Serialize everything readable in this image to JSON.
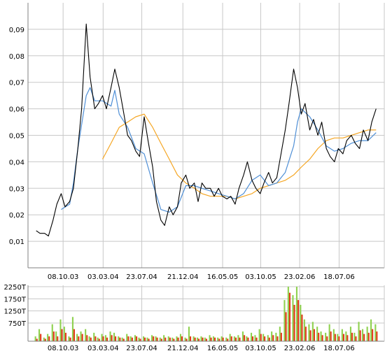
{
  "colors": {
    "price": "#000000",
    "ma_short": "#4f8fd6",
    "ma_long": "#f5a623",
    "volume_up": "#8fd14f",
    "volume_down": "#e23b1b",
    "grid": "#c8c8c8",
    "axis": "#808080"
  },
  "chart_data": [
    {
      "type": "line",
      "title": "",
      "xlabel": "",
      "ylabel": "",
      "grid": true,
      "legend": "none",
      "x_ticks": [
        "08.10.03",
        "03.03.04",
        "23.07.04",
        "21.12.04",
        "16.05.05",
        "03.10.05",
        "23.02.06",
        "18.07.06"
      ],
      "y_ticks": [
        "0,01",
        "0,02",
        "0,03",
        "0,04",
        "0,05",
        "0,06",
        "0,07",
        "0,08",
        "0,09"
      ],
      "ylim": [
        0,
        0.1
      ],
      "series": [
        {
          "key": "price",
          "x": [
            "01.07.03",
            "15.07.03",
            "01.08.03",
            "15.08.03",
            "01.09.03",
            "15.09.03",
            "01.10.03",
            "15.10.03",
            "01.11.03",
            "15.11.03",
            "01.12.03",
            "15.12.03",
            "01.01.04",
            "15.01.04",
            "01.02.04",
            "15.02.04",
            "01.03.04",
            "15.03.04",
            "01.04.04",
            "15.04.04",
            "01.05.04",
            "15.05.04",
            "01.06.04",
            "15.06.04",
            "01.07.04",
            "15.07.04",
            "01.08.04",
            "15.08.04",
            "01.09.04",
            "15.09.04",
            "01.10.04",
            "15.10.04",
            "01.11.04",
            "15.11.04",
            "01.12.04",
            "15.12.04",
            "01.01.05",
            "15.01.05",
            "01.02.05",
            "15.02.05",
            "01.03.05",
            "15.03.05",
            "01.04.05",
            "15.04.05",
            "01.05.05",
            "15.05.05",
            "01.06.05",
            "15.06.05",
            "01.07.05",
            "15.07.05",
            "01.08.05",
            "15.08.05",
            "01.09.05",
            "15.09.05",
            "01.10.05",
            "15.10.05",
            "01.11.05",
            "15.11.05",
            "01.12.05",
            "15.12.05",
            "01.01.06",
            "15.01.06",
            "01.02.06",
            "15.02.06",
            "01.03.06",
            "15.03.06",
            "01.04.06",
            "15.04.06",
            "01.05.06",
            "15.05.06",
            "01.06.06",
            "15.06.06",
            "01.07.06",
            "15.07.06",
            "01.08.06",
            "15.08.06",
            "01.09.06",
            "15.09.06",
            "01.10.06",
            "15.10.06",
            "01.11.06",
            "15.11.06",
            "01.12.06"
          ],
          "values": [
            0.014,
            0.013,
            0.013,
            0.012,
            0.018,
            0.024,
            0.028,
            0.023,
            0.025,
            0.03,
            0.045,
            0.06,
            0.092,
            0.072,
            0.06,
            0.062,
            0.065,
            0.06,
            0.068,
            0.075,
            0.068,
            0.06,
            0.05,
            0.048,
            0.044,
            0.042,
            0.057,
            0.048,
            0.038,
            0.025,
            0.018,
            0.016,
            0.023,
            0.02,
            0.023,
            0.032,
            0.035,
            0.03,
            0.032,
            0.025,
            0.032,
            0.03,
            0.03,
            0.027,
            0.03,
            0.027,
            0.026,
            0.027,
            0.024,
            0.03,
            0.035,
            0.04,
            0.033,
            0.03,
            0.028,
            0.032,
            0.036,
            0.032,
            0.034,
            0.042,
            0.052,
            0.062,
            0.075,
            0.068,
            0.058,
            0.062,
            0.052,
            0.056,
            0.05,
            0.055,
            0.045,
            0.042,
            0.04,
            0.045,
            0.043,
            0.048,
            0.05,
            0.047,
            0.045,
            0.052,
            0.048,
            0.055,
            0.06
          ]
        },
        {
          "key": "ma_short",
          "x": [
            "01.07.03",
            "01.08.03",
            "01.09.03",
            "01.10.03",
            "01.11.03",
            "15.11.03",
            "01.12.03",
            "01.01.04",
            "15.01.04",
            "01.02.04",
            "01.03.04",
            "01.04.04",
            "15.04.04",
            "01.05.04",
            "01.06.04",
            "01.07.04",
            "01.08.04",
            "01.09.04",
            "01.10.04",
            "01.11.04",
            "01.12.04",
            "01.01.05",
            "01.02.05",
            "01.03.05",
            "01.04.05",
            "01.05.05",
            "01.06.05",
            "01.07.05",
            "01.08.05",
            "01.09.05",
            "01.10.05",
            "01.11.05",
            "01.12.05",
            "01.01.06",
            "01.02.06",
            "15.02.06",
            "01.03.06",
            "01.04.06",
            "01.05.06",
            "01.06.06",
            "01.07.06",
            "01.08.06",
            "01.09.06",
            "01.10.06",
            "01.11.06",
            "01.12.06"
          ],
          "values": [
            null,
            null,
            null,
            0.022,
            0.024,
            0.032,
            0.045,
            0.065,
            0.068,
            0.063,
            0.063,
            0.061,
            0.067,
            0.058,
            0.053,
            0.045,
            0.043,
            0.032,
            0.022,
            0.021,
            0.023,
            0.031,
            0.031,
            0.03,
            0.029,
            0.028,
            0.027,
            0.026,
            0.028,
            0.033,
            0.035,
            0.031,
            0.032,
            0.036,
            0.046,
            0.055,
            0.06,
            0.057,
            0.052,
            0.046,
            0.044,
            0.045,
            0.047,
            0.048,
            0.048,
            0.051
          ]
        },
        {
          "key": "ma_long",
          "x": [
            "01.03.04",
            "01.04.04",
            "01.05.04",
            "01.06.04",
            "01.07.04",
            "01.08.04",
            "01.09.04",
            "01.10.04",
            "01.11.04",
            "01.12.04",
            "01.01.05",
            "01.02.05",
            "01.03.05",
            "01.04.05",
            "01.05.05",
            "01.06.05",
            "01.07.05",
            "01.08.05",
            "01.09.05",
            "01.10.05",
            "01.11.05",
            "01.12.05",
            "01.01.06",
            "01.02.06",
            "01.03.06",
            "01.04.06",
            "01.05.06",
            "01.06.06",
            "01.07.06",
            "01.08.06",
            "01.09.06",
            "01.10.06",
            "01.11.06",
            "01.12.06"
          ],
          "values": [
            0.041,
            0.047,
            0.053,
            0.055,
            0.057,
            0.058,
            0.053,
            0.047,
            0.041,
            0.035,
            0.032,
            0.03,
            0.028,
            0.027,
            0.027,
            0.027,
            0.026,
            0.027,
            0.028,
            0.03,
            0.031,
            0.032,
            0.033,
            0.035,
            0.038,
            0.041,
            0.045,
            0.048,
            0.049,
            0.049,
            0.05,
            0.051,
            0.052,
            0.052
          ]
        }
      ]
    },
    {
      "type": "bar",
      "title": "",
      "xlabel": "",
      "ylabel": "",
      "grid": true,
      "legend": "none",
      "x_ticks": [
        "08.10.03",
        "03.03.04",
        "23.07.04",
        "21.12.04",
        "16.05.05",
        "03.10.05",
        "23.02.06",
        "18.07.06"
      ],
      "y_ticks": [
        "750T",
        "1250T",
        "1750T",
        "2250T"
      ],
      "ylim": [
        0,
        2250
      ],
      "x": [
        "01.07.03",
        "15.07.03",
        "01.08.03",
        "15.08.03",
        "01.09.03",
        "15.09.03",
        "01.10.03",
        "15.10.03",
        "01.11.03",
        "15.11.03",
        "01.12.03",
        "15.12.03",
        "01.01.04",
        "15.01.04",
        "01.02.04",
        "15.02.04",
        "01.03.04",
        "15.03.04",
        "01.04.04",
        "15.04.04",
        "01.05.04",
        "15.05.04",
        "01.06.04",
        "15.06.04",
        "01.07.04",
        "15.07.04",
        "01.08.04",
        "15.08.04",
        "01.09.04",
        "15.09.04",
        "01.10.04",
        "15.10.04",
        "01.11.04",
        "15.11.04",
        "01.12.04",
        "15.12.04",
        "01.01.05",
        "15.01.05",
        "01.02.05",
        "15.02.05",
        "01.03.05",
        "15.03.05",
        "01.04.05",
        "15.04.05",
        "01.05.05",
        "15.05.05",
        "01.06.05",
        "15.06.05",
        "01.07.05",
        "15.07.05",
        "01.08.05",
        "15.08.05",
        "01.09.05",
        "15.09.05",
        "01.10.05",
        "15.10.05",
        "01.11.05",
        "15.11.05",
        "01.12.05",
        "15.12.05",
        "01.01.06",
        "15.01.06",
        "01.02.06",
        "15.02.06",
        "01.03.06",
        "15.03.06",
        "01.04.06",
        "15.04.06",
        "01.05.06",
        "15.05.06",
        "01.06.06",
        "15.06.06",
        "01.07.06",
        "15.07.06",
        "01.08.06",
        "15.08.06",
        "01.09.06",
        "15.09.06",
        "01.10.06",
        "15.10.06",
        "01.11.06",
        "15.11.06",
        "01.12.06"
      ],
      "series": [
        {
          "key": "volume_up",
          "values": [
            200,
            500,
            150,
            300,
            700,
            400,
            900,
            600,
            200,
            1000,
            300,
            400,
            500,
            200,
            350,
            150,
            300,
            250,
            400,
            350,
            200,
            150,
            300,
            200,
            250,
            150,
            200,
            150,
            250,
            200,
            150,
            250,
            200,
            150,
            200,
            300,
            150,
            600,
            200,
            150,
            200,
            150,
            250,
            200,
            150,
            200,
            150,
            300,
            200,
            250,
            400,
            200,
            350,
            250,
            500,
            300,
            250,
            400,
            350,
            600,
            1700,
            2250,
            1900,
            2250,
            1500,
            900,
            700,
            800,
            600,
            400,
            350,
            700,
            500,
            300,
            500,
            400,
            600,
            350,
            800,
            500,
            600,
            900,
            700
          ]
        },
        {
          "key": "volume_down",
          "values": [
            100,
            300,
            100,
            200,
            400,
            200,
            500,
            350,
            150,
            500,
            200,
            300,
            250,
            150,
            200,
            100,
            200,
            150,
            250,
            200,
            150,
            100,
            200,
            150,
            200,
            100,
            150,
            100,
            200,
            150,
            100,
            150,
            150,
            100,
            150,
            200,
            100,
            200,
            150,
            100,
            150,
            100,
            150,
            150,
            100,
            150,
            100,
            200,
            150,
            150,
            250,
            150,
            200,
            150,
            300,
            200,
            150,
            250,
            200,
            350,
            1200,
            2000,
            1500,
            1700,
            1100,
            600,
            450,
            500,
            350,
            250,
            200,
            400,
            300,
            200,
            300,
            250,
            350,
            200,
            450,
            300,
            350,
            500,
            400
          ]
        }
      ]
    }
  ]
}
